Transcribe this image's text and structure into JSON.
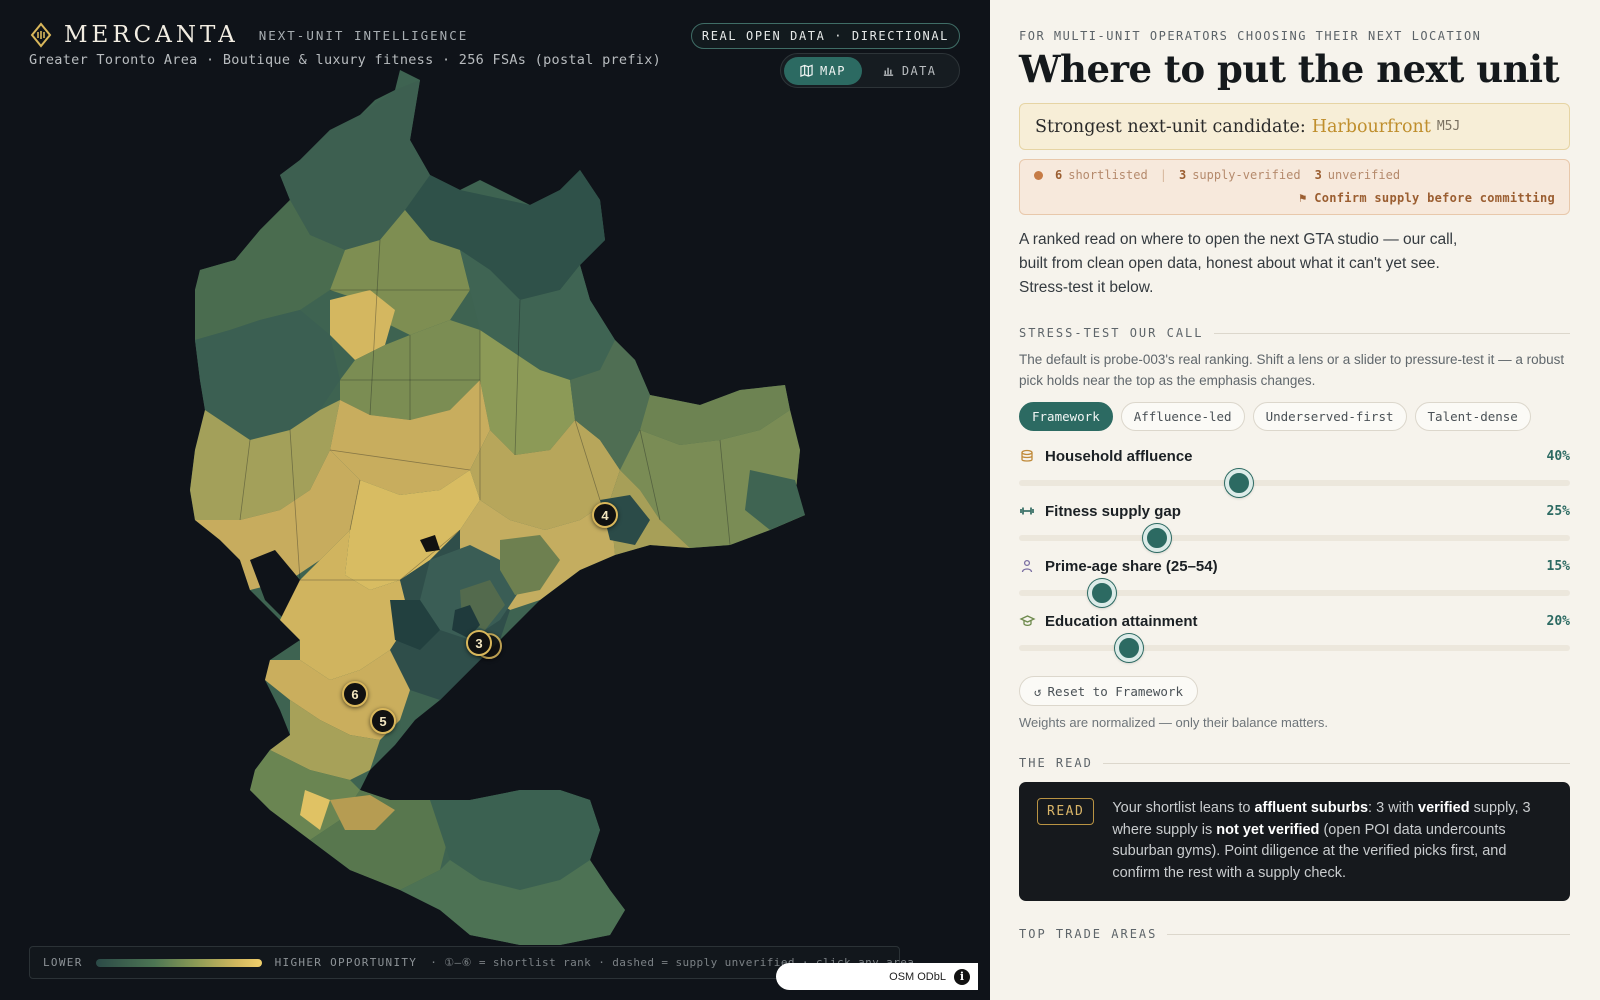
{
  "brand": {
    "name": "MERCANTA",
    "tagline": "NEXT-UNIT INTELLIGENCE",
    "subtitle": "Greater Toronto Area · Boutique & luxury fitness · 256 FSAs (postal prefix)"
  },
  "badge": "REAL OPEN DATA · DIRECTIONAL",
  "view_toggle": {
    "map": "MAP",
    "data": "DATA",
    "active": "map"
  },
  "map_markers": [
    "4",
    "3",
    "6",
    "5"
  ],
  "legend": {
    "lower": "LOWER",
    "higher": "HIGHER OPPORTUNITY",
    "note": "· ①–⑥ = shortlist rank · dashed = supply unverified · click any area"
  },
  "attribution": {
    "text": "OSM ODbL",
    "info_glyph": "i"
  },
  "side": {
    "eyebrow": "FOR MULTI-UNIT OPERATORS CHOOSING THEIR NEXT LOCATION",
    "headline": "Where to put the next unit",
    "candidate": {
      "prefix": "Strongest next-unit candidate:",
      "name": "Harbourfront",
      "code": "M5J"
    },
    "status": {
      "shortlisted_count": "6",
      "shortlisted_label": "shortlisted",
      "verified_count": "3",
      "verified_label": "supply-verified",
      "unverified_count": "3",
      "unverified_label": "unverified",
      "warning": "⚑ Confirm supply before committing"
    },
    "intro": "A ranked read on where to open the next GTA studio — our call, built from clean open data, honest about what it can't yet see. Stress-test it below.",
    "stress_test": {
      "heading": "STRESS-TEST OUR CALL",
      "desc": "The default is probe-003's real ranking. Shift a lens or a slider to pressure-test it — a robust pick holds near the top as the emphasis changes.",
      "lenses": [
        "Framework",
        "Affluence-led",
        "Underserved-first",
        "Talent-dense"
      ],
      "active_lens": "Framework",
      "sliders": [
        {
          "label": "Household affluence",
          "value_text": "40%",
          "value": 0.4,
          "icon": "coins-icon"
        },
        {
          "label": "Fitness supply gap",
          "value_text": "25%",
          "value": 0.25,
          "icon": "dumbbell-icon"
        },
        {
          "label": "Prime-age share (25–54)",
          "value_text": "15%",
          "value": 0.15,
          "icon": "person-icon"
        },
        {
          "label": "Education attainment",
          "value_text": "20%",
          "value": 0.2,
          "icon": "graduation-cap-icon"
        }
      ],
      "reset_label": "Reset to Framework",
      "weights_note": "Weights are normalized — only their balance matters."
    },
    "the_read": {
      "heading": "THE READ",
      "pill": "READ",
      "t1": "Your shortlist leans to ",
      "b1": "affluent suburbs",
      "t2": ": 3 with ",
      "b2": "verified",
      "t3": " supply, 3 where supply is ",
      "b3": "not yet verified",
      "t4": " (open POI data undercounts suburban gyms). Point diligence at the verified picks first, and confirm the rest with a supply check."
    },
    "top_areas_heading": "TOP TRADE AREAS"
  },
  "colors": {
    "accent": "#2c6a62",
    "gold": "#d9b75b",
    "map_bg": "#0f1319",
    "panel_bg": "#f6f3ec"
  }
}
